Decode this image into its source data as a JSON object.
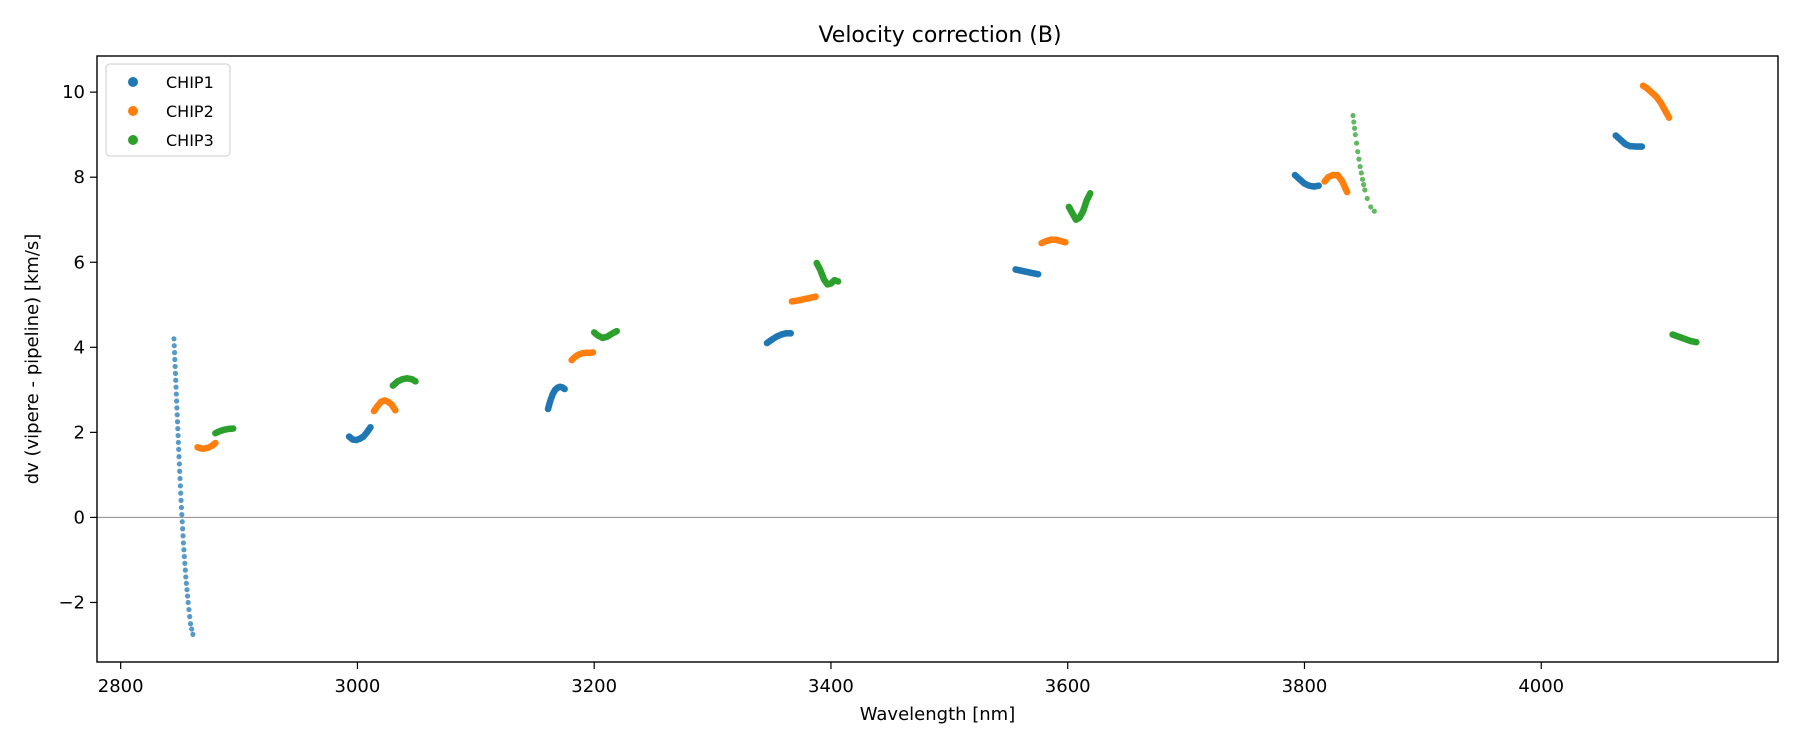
{
  "chart_data": {
    "type": "scatter",
    "title": "Velocity correction (B)",
    "xlabel": "Wavelength [nm]",
    "ylabel": "dv (vipere - pipeline) [km/s]",
    "xlim": [
      2780,
      4200
    ],
    "ylim": [
      -3.4,
      10.85
    ],
    "xticks": [
      2800,
      3000,
      3200,
      3400,
      3600,
      3800,
      4000
    ],
    "yticks": [
      -2,
      0,
      2,
      4,
      6,
      8,
      10
    ],
    "ytick_labels": [
      "−2",
      "0",
      "2",
      "4",
      "6",
      "8",
      "10"
    ],
    "grid": false,
    "reference_line_y": 0,
    "legend_position": "upper-left",
    "series": [
      {
        "name": "CHIP1",
        "color": "#1f77b4",
        "segments": [
          {
            "x": [
              2845,
              2847,
              2849,
              2851,
              2853,
              2855,
              2857,
              2859,
              2861
            ],
            "y": [
              4.2,
              2.9,
              1.6,
              0.4,
              -0.6,
              -1.4,
              -2.0,
              -2.5,
              -2.75
            ],
            "style": "sparse"
          },
          {
            "x": [
              2993,
              2996,
              2999,
              3002,
              3005,
              3008,
              3011
            ],
            "y": [
              1.9,
              1.83,
              1.82,
              1.85,
              1.9,
              2.0,
              2.12
            ]
          },
          {
            "x": [
              3161,
              3163,
              3165,
              3167,
              3169,
              3171,
              3173,
              3175
            ],
            "y": [
              2.55,
              2.75,
              2.9,
              3.0,
              3.05,
              3.07,
              3.06,
              3.02
            ]
          },
          {
            "x": [
              3346,
              3350,
              3354,
              3358,
              3362,
              3366
            ],
            "y": [
              4.1,
              4.18,
              4.25,
              4.3,
              4.33,
              4.33
            ]
          },
          {
            "x": [
              3556,
              3561,
              3566,
              3571,
              3575
            ],
            "y": [
              5.83,
              5.8,
              5.77,
              5.74,
              5.72
            ]
          },
          {
            "x": [
              3792,
              3796,
              3800,
              3804,
              3808,
              3812
            ],
            "y": [
              8.05,
              7.95,
              7.85,
              7.8,
              7.78,
              7.8
            ]
          },
          {
            "x": [
              4063,
              4067,
              4071,
              4075,
              4080,
              4085
            ],
            "y": [
              8.98,
              8.88,
              8.78,
              8.73,
              8.72,
              8.72
            ]
          }
        ]
      },
      {
        "name": "CHIP2",
        "color": "#ff7f0e",
        "segments": [
          {
            "x": [
              2865,
              2868,
              2871,
              2874,
              2877,
              2880
            ],
            "y": [
              1.65,
              1.62,
              1.62,
              1.64,
              1.68,
              1.75
            ]
          },
          {
            "x": [
              3014,
              3017,
              3020,
              3023,
              3026,
              3029,
              3032
            ],
            "y": [
              2.5,
              2.62,
              2.72,
              2.75,
              2.72,
              2.65,
              2.52
            ]
          },
          {
            "x": [
              3181,
              3184,
              3187,
              3190,
              3193,
              3196,
              3199
            ],
            "y": [
              3.7,
              3.78,
              3.83,
              3.86,
              3.87,
              3.87,
              3.88
            ]
          },
          {
            "x": [
              3367,
              3372,
              3377,
              3382,
              3387
            ],
            "y": [
              5.08,
              5.1,
              5.13,
              5.16,
              5.19
            ]
          },
          {
            "x": [
              3578,
              3582,
              3586,
              3590,
              3594,
              3598
            ],
            "y": [
              6.45,
              6.5,
              6.53,
              6.53,
              6.5,
              6.47
            ]
          },
          {
            "x": [
              3817,
              3820,
              3824,
              3828,
              3832,
              3836
            ],
            "y": [
              7.9,
              8.0,
              8.05,
              8.05,
              7.9,
              7.65
            ]
          },
          {
            "x": [
              4086,
              4089,
              4093,
              4097,
              4101,
              4105,
              4108
            ],
            "y": [
              10.15,
              10.1,
              10.0,
              9.9,
              9.75,
              9.55,
              9.4
            ]
          }
        ]
      },
      {
        "name": "CHIP3",
        "color": "#2ca02c",
        "segments": [
          {
            "x": [
              2880,
              2883,
              2887,
              2891,
              2895
            ],
            "y": [
              1.98,
              2.02,
              2.06,
              2.08,
              2.09
            ]
          },
          {
            "x": [
              3030,
              3034,
              3038,
              3042,
              3046,
              3049
            ],
            "y": [
              3.1,
              3.2,
              3.25,
              3.27,
              3.25,
              3.2
            ]
          },
          {
            "x": [
              3200,
              3203,
              3207,
              3211,
              3215,
              3219
            ],
            "y": [
              4.35,
              4.28,
              4.22,
              4.25,
              4.32,
              4.38
            ]
          },
          {
            "x": [
              3388,
              3391,
              3394,
              3397,
              3400,
              3403,
              3406
            ],
            "y": [
              5.98,
              5.82,
              5.6,
              5.48,
              5.5,
              5.58,
              5.55
            ]
          },
          {
            "x": [
              3601,
              3604,
              3607,
              3610,
              3613,
              3616,
              3619
            ],
            "y": [
              7.3,
              7.15,
              7.0,
              7.05,
              7.2,
              7.45,
              7.62
            ]
          },
          {
            "x": [
              3841,
              3843,
              3845,
              3847,
              3849,
              3851,
              3853,
              3856,
              3859
            ],
            "y": [
              9.45,
              9.0,
              8.6,
              8.25,
              7.95,
              7.7,
              7.5,
              7.3,
              7.2
            ],
            "style": "sparse"
          },
          {
            "x": [
              4111,
              4116,
              4121,
              4126,
              4131
            ],
            "y": [
              4.3,
              4.25,
              4.2,
              4.15,
              4.12
            ]
          }
        ]
      }
    ]
  }
}
